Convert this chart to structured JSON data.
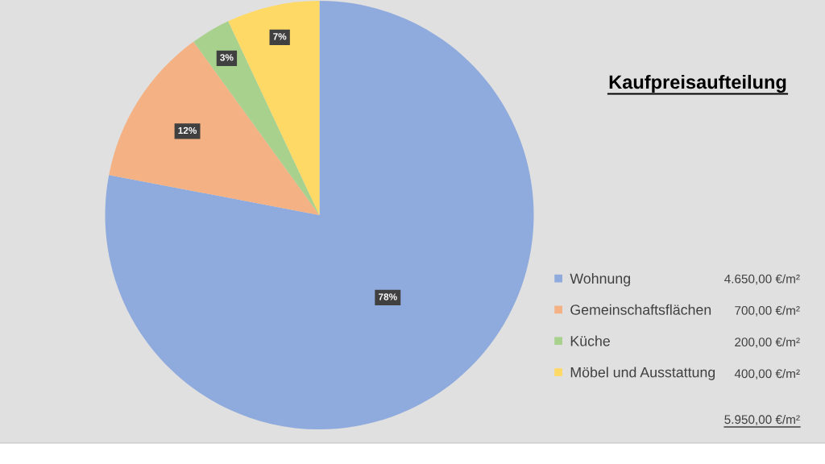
{
  "chart_data": {
    "type": "pie",
    "title": "Kaufpreisaufteilung",
    "categories": [
      "Wohnung",
      "Gemeinschaftsflächen",
      "Küche",
      "Möbel und Ausstattung"
    ],
    "values": [
      78,
      12,
      3,
      7
    ],
    "colors": [
      "#8faadc",
      "#f4b183",
      "#a9d18e",
      "#ffd966"
    ],
    "value_labels": [
      "78%",
      "12%",
      "3%",
      "7%"
    ],
    "legend": "right",
    "annotations": [
      "4.650,00 €/m²",
      "700,00 €/m²",
      "200,00 €/m²",
      "400,00 €/m²",
      "5.950,00 €/m²"
    ]
  }
}
